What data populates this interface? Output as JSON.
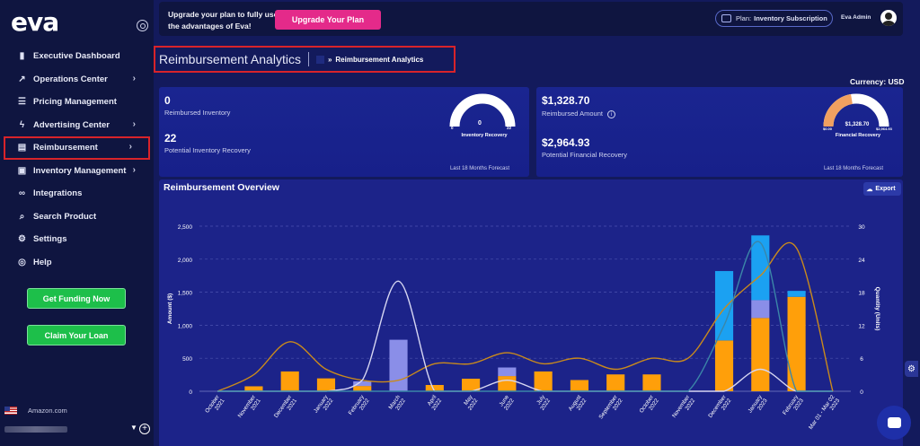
{
  "app": {
    "logo": "eva"
  },
  "sidebar": {
    "items": [
      {
        "label": "Executive Dashboard",
        "icon": "bar-chart-icon",
        "glyph": "▮",
        "chevron": false
      },
      {
        "label": "Operations Center",
        "icon": "trend-icon",
        "glyph": "↗",
        "chevron": true
      },
      {
        "label": "Pricing Management",
        "icon": "list-icon",
        "glyph": "☰",
        "chevron": false
      },
      {
        "label": "Advertising Center",
        "icon": "bolt-icon",
        "glyph": "ϟ",
        "chevron": true
      },
      {
        "label": "Reimbursement",
        "icon": "document-icon",
        "glyph": "▤",
        "chevron": true
      },
      {
        "label": "Inventory Management",
        "icon": "truck-icon",
        "glyph": "▣",
        "chevron": true
      },
      {
        "label": "Integrations",
        "icon": "link-icon",
        "glyph": "∞",
        "chevron": false
      },
      {
        "label": "Search Product",
        "icon": "search-icon",
        "glyph": "⌕",
        "chevron": false
      },
      {
        "label": "Settings",
        "icon": "gear-icon",
        "glyph": "⚙",
        "chevron": false
      },
      {
        "label": "Help",
        "icon": "lifebuoy-icon",
        "glyph": "◎",
        "chevron": false
      }
    ],
    "get_funding": "Get Funding Now",
    "claim_loan": "Claim Your Loan",
    "marketplace": "Amazon.com"
  },
  "banner": {
    "upgrade_text": "Upgrade your plan to fully use the advantages of Eva!",
    "upgrade_button": "Upgrade Your Plan",
    "plan_label": "Plan:",
    "plan_value": "Inventory Subscription",
    "user_name": "Eva Admin"
  },
  "breadcrumb": {
    "title": "Reimbursement Analytics",
    "sep": "»",
    "current": "Reimbursement Analytics"
  },
  "currency": "Currency: USD",
  "inventory_card": {
    "reimbursed_value": "0",
    "reimbursed_label": "Reimbursed Inventory",
    "potential_value": "22",
    "potential_label": "Potential Inventory Recovery",
    "gauge_value": "0",
    "gauge_min": "0",
    "gauge_max": "22",
    "gauge_fraction": 0,
    "gauge_label": "Inventory Recovery",
    "footer": "Last 18 Months Forecast"
  },
  "financial_card": {
    "reimbursed_value": "$1,328.70",
    "reimbursed_label": "Reimbursed Amount",
    "potential_value": "$2,964.93",
    "potential_label": "Potential Financial Recovery",
    "gauge_value": "$1,328.70",
    "gauge_min": "$0.00",
    "gauge_max": "$2,964.93",
    "gauge_fraction": 0.448,
    "gauge_label": "Financial Recovery",
    "footer": "Last 18 Months Forecast"
  },
  "chart_section": {
    "title": "Reimbursement Overview",
    "export": "Export"
  },
  "chart_data": {
    "type": "bar",
    "ylabel": "Amount ($)",
    "y2label": "Quantity (Units)",
    "ylim": [
      0,
      2500
    ],
    "y2lim": [
      0,
      30
    ],
    "yticks": [
      "0",
      "500",
      "1,000",
      "1,500",
      "2,000",
      "2,500"
    ],
    "y2ticks": [
      "0",
      "6",
      "12",
      "18",
      "24",
      "30"
    ],
    "categories": [
      [
        "October",
        "2021"
      ],
      [
        "November",
        "2021"
      ],
      [
        "December",
        "2021"
      ],
      [
        "January",
        "2022"
      ],
      [
        "February",
        "2022"
      ],
      [
        "March",
        "2022"
      ],
      [
        "April",
        "2022"
      ],
      [
        "May",
        "2022"
      ],
      [
        "June",
        "2022"
      ],
      [
        "July",
        "2022"
      ],
      [
        "August",
        "2022"
      ],
      [
        "September",
        "2022"
      ],
      [
        "October",
        "2022"
      ],
      [
        "November",
        "2022"
      ],
      [
        "December",
        "2022"
      ],
      [
        "January",
        "2023"
      ],
      [
        "February",
        "2023"
      ],
      [
        "Mar 01 - Mar 02",
        "2023"
      ]
    ],
    "stacked_series": [
      {
        "color": "#ff9f0a",
        "values": [
          0,
          75,
          300,
          195,
          80,
          0,
          95,
          190,
          230,
          300,
          170,
          255,
          255,
          0,
          770,
          1110,
          1430,
          0
        ]
      },
      {
        "color": "#8a8ee8",
        "values": [
          0,
          0,
          0,
          0,
          70,
          780,
          0,
          0,
          130,
          0,
          0,
          0,
          0,
          0,
          0,
          270,
          0,
          0
        ]
      },
      {
        "color": "#1ba1f2",
        "values": [
          0,
          0,
          0,
          0,
          0,
          0,
          0,
          0,
          0,
          0,
          0,
          0,
          0,
          0,
          1050,
          980,
          90,
          0
        ]
      }
    ],
    "lines": [
      {
        "color": "#c98a1c",
        "axis": "y2",
        "values": [
          0,
          3,
          9,
          4,
          2,
          2,
          5,
          5,
          7,
          5,
          6,
          4,
          6,
          6,
          15,
          21,
          26,
          0
        ]
      },
      {
        "color": "#d6d6f2",
        "axis": "y2",
        "values": [
          0,
          0,
          0,
          0,
          2,
          20,
          0,
          0,
          2,
          0,
          0,
          0,
          0,
          0,
          0,
          4,
          0,
          0
        ]
      },
      {
        "color": "#3b86a8",
        "axis": "y2",
        "values": [
          0,
          0,
          0,
          0,
          0,
          0,
          0,
          0,
          0,
          0,
          0,
          0,
          0,
          0,
          12,
          27,
          0,
          0
        ]
      }
    ]
  }
}
